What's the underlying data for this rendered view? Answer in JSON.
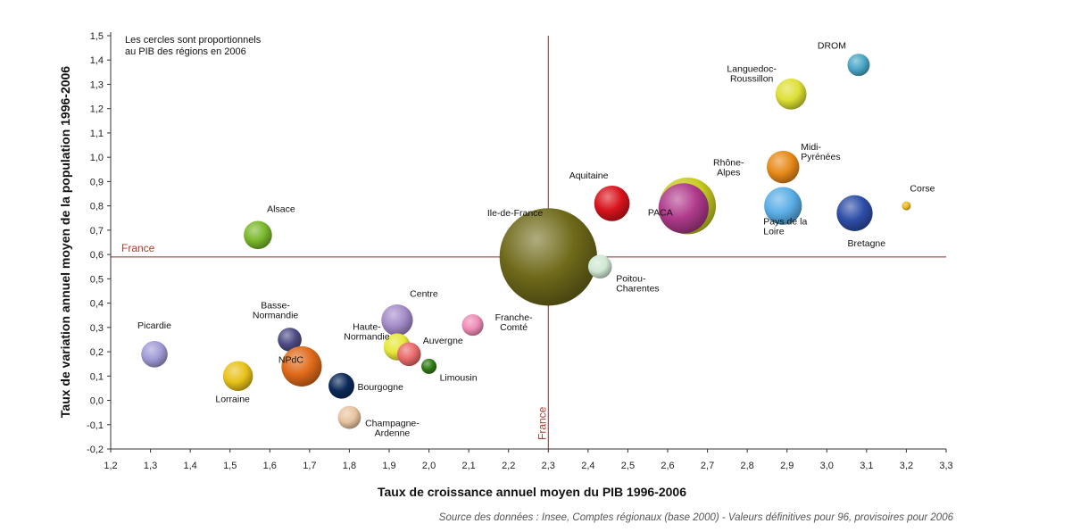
{
  "chart_data": {
    "type": "scatter",
    "variant": "bubble",
    "note": "Les cercles sont proportionnels\nau PIB des régions en 2006",
    "xlabel": "Taux de croissance annuel moyen du PIB 1996-2006",
    "ylabel": "Taux de variation annuel moyen de la population 1996-2006",
    "xlim": [
      1.2,
      3.3
    ],
    "ylim": [
      -0.2,
      1.5
    ],
    "xticks": [
      "1,2",
      "1,3",
      "1,4",
      "1,5",
      "1,6",
      "1,7",
      "1,8",
      "1,9",
      "2,0",
      "2,1",
      "2,2",
      "2,3",
      "2,4",
      "2,5",
      "2,6",
      "2,7",
      "2,8",
      "2,9",
      "3,0",
      "3,1",
      "3,2",
      "3,3"
    ],
    "yticks": [
      "-0,2",
      "-0,1",
      "0,0",
      "0,1",
      "0,2",
      "0,3",
      "0,4",
      "0,5",
      "0,6",
      "0,7",
      "0,8",
      "0,9",
      "1,0",
      "1,1",
      "1,2",
      "1,3",
      "1,4",
      "1,5"
    ],
    "grid": false,
    "reference_lines": {
      "x": {
        "value": 2.3,
        "label": "France"
      },
      "y": {
        "value": 0.59,
        "label": "France"
      }
    },
    "colors": {
      "reference": "#8b2b2b",
      "axis": "#333333"
    },
    "points": [
      {
        "name": "Ile-de-France",
        "x": 2.3,
        "y": 0.59,
        "size": 28.7,
        "color": "#6f6a1a"
      },
      {
        "name": "Rhône-Alpes",
        "x": 2.65,
        "y": 0.8,
        "size": 9.7,
        "color": "#c8cc22"
      },
      {
        "name": "PACA",
        "x": 2.64,
        "y": 0.79,
        "size": 7.6,
        "color": "#b03a8c"
      },
      {
        "name": "Aquitaine",
        "x": 2.46,
        "y": 0.81,
        "size": 3.8,
        "color": "#d8141c"
      },
      {
        "name": "Poitou-Charentes",
        "x": 2.43,
        "y": 0.55,
        "size": 1.7,
        "color": "#cfe8d4"
      },
      {
        "name": "Midi-Pyrénées",
        "x": 2.89,
        "y": 0.96,
        "size": 3.2,
        "color": "#e88a1a"
      },
      {
        "name": "Pays de la Loire",
        "x": 2.89,
        "y": 0.8,
        "size": 4.3,
        "color": "#5aaee6"
      },
      {
        "name": "Bretagne",
        "x": 3.07,
        "y": 0.77,
        "size": 3.9,
        "color": "#2e4ea8"
      },
      {
        "name": "Corse",
        "x": 3.2,
        "y": 0.8,
        "size": 0.24,
        "color": "#e8b820"
      },
      {
        "name": "Languedoc-Roussillon",
        "x": 2.91,
        "y": 1.26,
        "size": 2.9,
        "color": "#dde034"
      },
      {
        "name": "DROM",
        "x": 3.08,
        "y": 1.38,
        "size": 1.5,
        "color": "#4aa7c7"
      },
      {
        "name": "Alsace",
        "x": 1.57,
        "y": 0.68,
        "size": 2.4,
        "color": "#7ab82c"
      },
      {
        "name": "Centre",
        "x": 1.92,
        "y": 0.33,
        "size": 3.0,
        "color": "#a48cc9"
      },
      {
        "name": "Basse-Normandie",
        "x": 1.65,
        "y": 0.25,
        "size": 1.7,
        "color": "#4d4c85"
      },
      {
        "name": "Haute-Normandie",
        "x": 1.92,
        "y": 0.22,
        "size": 2.2,
        "color": "#e6e838"
      },
      {
        "name": "Auvergne",
        "x": 1.95,
        "y": 0.19,
        "size": 1.7,
        "color": "#e86a6a"
      },
      {
        "name": "Franche-Comté",
        "x": 2.11,
        "y": 0.31,
        "size": 1.4,
        "color": "#ee8cb6"
      },
      {
        "name": "Limousin",
        "x": 2.0,
        "y": 0.14,
        "size": 0.7,
        "color": "#2f7a14"
      },
      {
        "name": "Picardie",
        "x": 1.31,
        "y": 0.19,
        "size": 2.1,
        "color": "#a09bd6"
      },
      {
        "name": "Lorraine",
        "x": 1.52,
        "y": 0.1,
        "size": 2.7,
        "color": "#e8c21a"
      },
      {
        "name": "NPdC",
        "x": 1.68,
        "y": 0.14,
        "size": 4.9,
        "color": "#e06a1a"
      },
      {
        "name": "Bourgogne",
        "x": 1.78,
        "y": 0.06,
        "size": 2.0,
        "color": "#0c2a5a"
      },
      {
        "name": "Champagne-Ardenne",
        "x": 1.8,
        "y": -0.07,
        "size": 1.6,
        "color": "#e8c4a0"
      }
    ]
  },
  "source": "Source des données : Insee, Comptes régionaux (base 2000) - Valeurs définitives pour 96, provisoires pour 2006"
}
